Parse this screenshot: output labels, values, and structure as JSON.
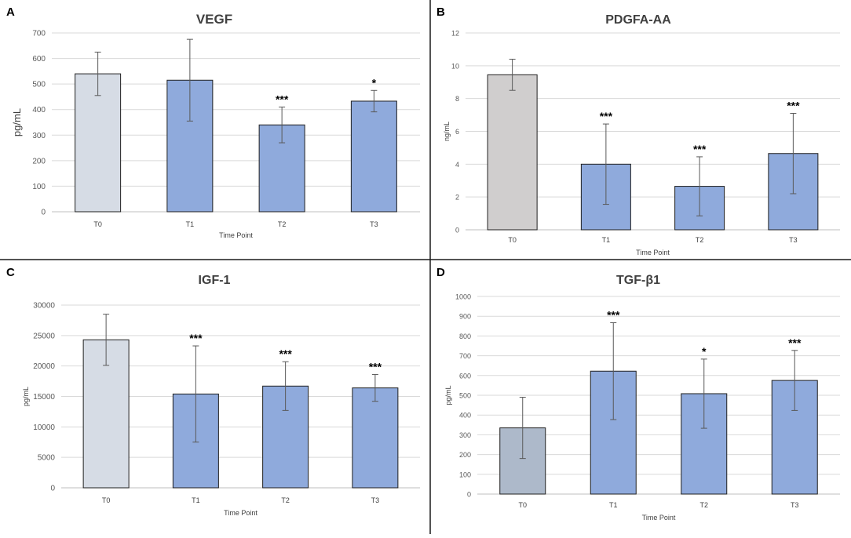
{
  "figure": {
    "panels_layout": "2x2 grid",
    "bar_edge_color": "#1f1f1f",
    "error_bar_color": "#595959",
    "grid_color": "#d9d9d9",
    "divider_color": "#1a1a1a"
  },
  "chart_data": [
    {
      "panel_label": "A",
      "type": "bar",
      "title": "VEGF",
      "xlabel": "Time Point",
      "ylabel": "pg/mL",
      "categories": [
        "T0",
        "T1",
        "T2",
        "T3"
      ],
      "values": [
        540,
        515,
        340,
        433
      ],
      "errors": [
        85,
        160,
        70,
        42
      ],
      "significance": [
        "",
        "",
        "***",
        "*"
      ],
      "ylim": [
        0,
        700
      ],
      "yticks": [
        0,
        100,
        200,
        300,
        400,
        500,
        600,
        700
      ],
      "ytick_labels": [
        "0",
        "100",
        "200",
        "300",
        "400",
        "500",
        "600",
        "700"
      ],
      "bar_colors": [
        "#d6dce5",
        "#8faadc",
        "#8faadc",
        "#8faadc"
      ],
      "grid": true
    },
    {
      "panel_label": "B",
      "type": "bar",
      "title": "PDGFA-AA",
      "xlabel": "Time Point",
      "ylabel": "ng/mL",
      "categories": [
        "T0",
        "T1",
        "T2",
        "T3"
      ],
      "values": [
        9.45,
        4.0,
        2.65,
        4.65
      ],
      "errors": [
        0.95,
        2.45,
        1.8,
        2.45
      ],
      "significance": [
        "",
        "***",
        "***",
        "***"
      ],
      "ylim": [
        0,
        12
      ],
      "yticks": [
        0,
        2,
        4,
        6,
        8,
        10,
        12
      ],
      "ytick_labels": [
        "0",
        "2",
        "4",
        "6",
        "8",
        "10",
        "12"
      ],
      "bar_colors": [
        "#d0cece",
        "#8faadc",
        "#8faadc",
        "#8faadc"
      ],
      "grid": true
    },
    {
      "panel_label": "C",
      "type": "bar",
      "title": "IGF-1",
      "xlabel": "Time Point",
      "ylabel": "pg/mL",
      "categories": [
        "T0",
        "T1",
        "T2",
        "T3"
      ],
      "values": [
        24300,
        15400,
        16700,
        16400
      ],
      "errors": [
        4200,
        7900,
        4000,
        2200
      ],
      "significance": [
        "",
        "***",
        "***",
        "***"
      ],
      "ylim": [
        0,
        30000
      ],
      "yticks": [
        0,
        5000,
        10000,
        15000,
        20000,
        25000,
        30000
      ],
      "ytick_labels": [
        "0",
        "5000",
        "10000",
        "15000",
        "20000",
        "25000",
        "30000"
      ],
      "bar_colors": [
        "#d6dce5",
        "#8faadc",
        "#8faadc",
        "#8faadc"
      ],
      "grid": true
    },
    {
      "panel_label": "D",
      "type": "bar",
      "title": "TGF-β1",
      "xlabel": "Time Point",
      "ylabel": "pg/mL",
      "categories": [
        "T0",
        "T1",
        "T2",
        "T3"
      ],
      "values": [
        335,
        622,
        508,
        575
      ],
      "errors": [
        155,
        245,
        175,
        152
      ],
      "significance": [
        "",
        "***",
        "*",
        "***"
      ],
      "ylim": [
        0,
        1000
      ],
      "yticks": [
        0,
        100,
        200,
        300,
        400,
        500,
        600,
        700,
        800,
        900,
        1000
      ],
      "ytick_labels": [
        "0",
        "100",
        "200",
        "300",
        "400",
        "500",
        "600",
        "700",
        "800",
        "900",
        "1000"
      ],
      "bar_colors": [
        "#adb9ca",
        "#8faadc",
        "#8faadc",
        "#8faadc"
      ],
      "grid": true
    }
  ]
}
